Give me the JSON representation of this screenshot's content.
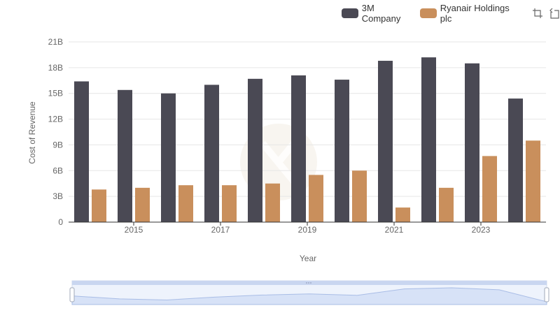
{
  "chart_data": {
    "type": "bar",
    "title": "",
    "xlabel": "Year",
    "ylabel": "Cost of Revenue",
    "x": [
      2014,
      2015,
      2016,
      2017,
      2018,
      2019,
      2020,
      2021,
      2022,
      2023,
      2024
    ],
    "x_tick_labels": [
      "2015",
      "2017",
      "2019",
      "2021",
      "2023"
    ],
    "y_tick_labels": [
      "0",
      "3B",
      "6B",
      "9B",
      "12B",
      "15B",
      "18B",
      "21B"
    ],
    "ylim": [
      0,
      21
    ],
    "y_unit": "billions",
    "grid": true,
    "legend_position": "top-right",
    "series": [
      {
        "name": "3M Company",
        "color": "#4a4954",
        "values": [
          16.4,
          15.4,
          15.0,
          16.0,
          16.7,
          17.1,
          16.6,
          18.8,
          19.2,
          18.5,
          14.4
        ]
      },
      {
        "name": "Ryanair Holdings plc",
        "color": "#c98f5c",
        "values": [
          3.8,
          4.0,
          4.3,
          4.3,
          4.5,
          5.5,
          6.0,
          1.7,
          4.0,
          7.7,
          9.5
        ]
      }
    ],
    "datazoom": {
      "visible": true,
      "range_percent": [
        0,
        100
      ]
    }
  },
  "toolbox": {
    "zoom_icon": "zoom-icon",
    "reset_icon": "restore-icon"
  }
}
